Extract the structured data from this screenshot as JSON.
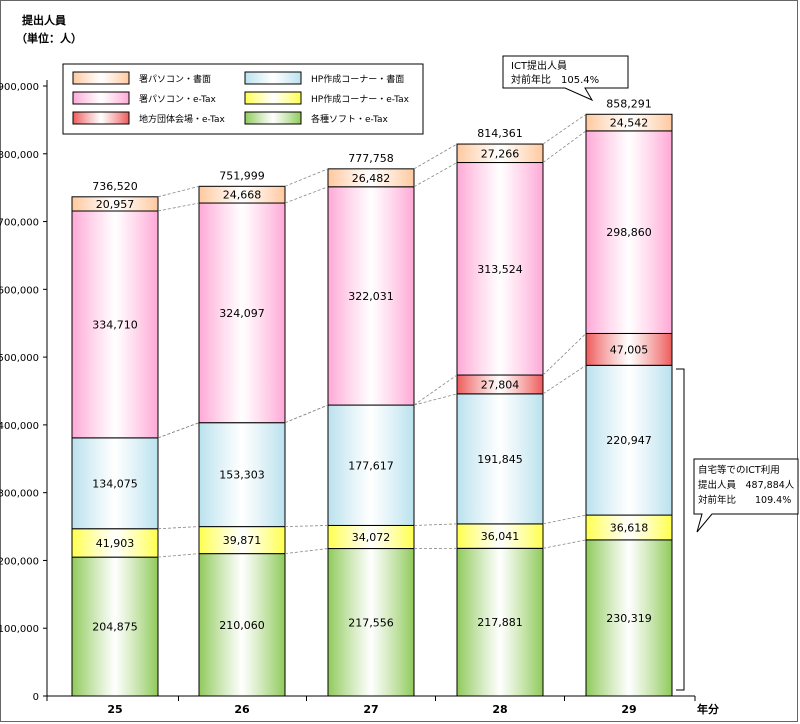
{
  "chart_data": {
    "type": "bar",
    "stacked": true,
    "ylabel": "提出人員",
    "yunit": "（単位：人）",
    "xunit": "年分",
    "categories": [
      "25",
      "26",
      "27",
      "28",
      "29"
    ],
    "ylim": [
      0,
      900000
    ],
    "yticks": [
      0,
      100000,
      200000,
      300000,
      400000,
      500000,
      600000,
      700000,
      800000,
      900000
    ],
    "ytick_labels": [
      "0",
      "100,000",
      "200,000",
      "300,000",
      "400,000",
      "500,000",
      "600,000",
      "700,000",
      "800,000",
      "900,000"
    ],
    "grid": false,
    "legend_position": "top-left",
    "series": [
      {
        "name": "各種ソフト・e-Tax",
        "color": "#8fca5a",
        "values": [
          204875,
          210060,
          217556,
          217881,
          230319
        ],
        "labels": [
          "204,875",
          "210,060",
          "217,556",
          "217,881",
          "230,319"
        ]
      },
      {
        "name": "HP作成コーナー・e-Tax",
        "color": "#ffff4d",
        "values": [
          41903,
          39871,
          34072,
          36041,
          36618
        ],
        "labels": [
          "41,903",
          "39,871",
          "34,072",
          "36,041",
          "36,618"
        ]
      },
      {
        "name": "HP作成コーナー・書面",
        "color": "#b9e1ee",
        "values": [
          134075,
          153303,
          177617,
          191845,
          220947
        ],
        "labels": [
          "134,075",
          "153,303",
          "177,617",
          "191,845",
          "220,947"
        ]
      },
      {
        "name": "地方団体会場・e-Tax",
        "color": "#ee5b5b",
        "values": [
          0,
          0,
          0,
          27804,
          47005
        ],
        "labels": [
          "",
          "",
          "",
          "27,804",
          "47,005"
        ]
      },
      {
        "name": "署パソコン・e-Tax",
        "color": "#ffa8d6",
        "values": [
          334710,
          324097,
          322031,
          313524,
          298860
        ],
        "labels": [
          "334,710",
          "324,097",
          "322,031",
          "313,524",
          "298,860"
        ]
      },
      {
        "name": "署パソコン・書面",
        "color": "#ffc89e",
        "values": [
          20957,
          24668,
          26482,
          27266,
          24542
        ],
        "labels": [
          "20,957",
          "24,668",
          "26,482",
          "27,266",
          "24,542"
        ]
      }
    ],
    "totals": [
      736520,
      751999,
      777758,
      814361,
      858291
    ],
    "total_labels": [
      "736,520",
      "751,999",
      "777,758",
      "814,361",
      "858,291"
    ],
    "legend_order": [
      "署パソコン・書面",
      "HP作成コーナー・書面",
      "署パソコン・e-Tax",
      "HP作成コーナー・e-Tax",
      "地方団体会場・e-Tax",
      "各種ソフト・e-Tax"
    ],
    "callouts": {
      "top": {
        "lines": [
          "ICT提出人員",
          "対前年比　105.4%"
        ]
      },
      "right": {
        "lines": [
          "自宅等でのICT利用",
          "提出人員　487,884人",
          "対前年比　　109.4%"
        ]
      }
    }
  }
}
